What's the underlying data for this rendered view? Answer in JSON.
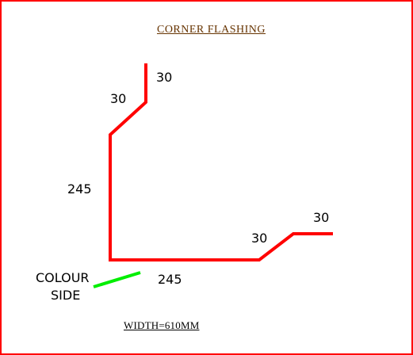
{
  "title": "CORNER  FLASHING",
  "footer": "WIDTH=610MM",
  "dimensions": {
    "top_flange": "30",
    "top_bend": "30",
    "vertical": "245",
    "horizontal": "245",
    "bottom_bend": "30",
    "bottom_flange": "30"
  },
  "colour_side_label": {
    "line1": "COLOUR",
    "line2": "SIDE"
  },
  "colors": {
    "border": "#ff0000",
    "profile": "#ff0000",
    "colour_side": "#00ee00",
    "title_text": "#663300",
    "footer_text": "#000000"
  }
}
